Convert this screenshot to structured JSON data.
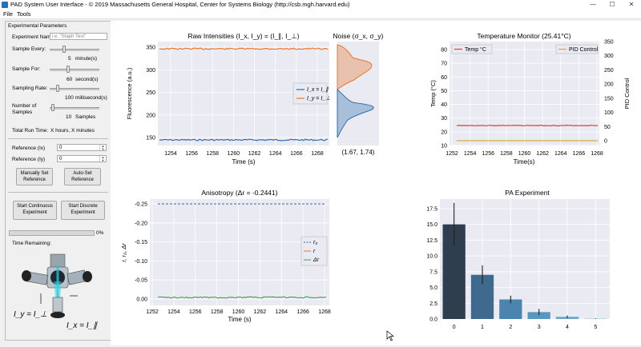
{
  "window": {
    "title": "PAD System User Interface - © 2019 Massachusetts General Hospital, Center for Systems Biology (http://csb.mgh.harvard.edu)",
    "minimize": "—",
    "maximize": "☐",
    "close": "✕"
  },
  "menu": [
    "File",
    "Tools"
  ],
  "params": {
    "heading": "Experimental Parameters",
    "experiment_name_label": "Experiment Name:",
    "experiment_name_placeholder": "i.e. \"Staph Test\"",
    "sample_every_label": "Sample Every:",
    "sample_every_value": "5",
    "sample_every_unit": "minute(s)",
    "sample_for_label": "Sample For:",
    "sample_for_value": "60",
    "sample_for_unit": "second(s)",
    "sampling_rate_label": "Sampling Rate:",
    "sampling_rate_value": "100",
    "sampling_rate_unit": "millisecond(s)",
    "num_samples_label1": "Number of",
    "num_samples_label2": "Samples",
    "num_samples_value": "10",
    "num_samples_unit": "Samples",
    "total_run_label": "Total Run Time:",
    "total_run_value": "X hours, X minutes",
    "ref_ix_label": "Reference (Ix)",
    "ref_ix_value": "0",
    "ref_iy_label": "Reference (Iy)",
    "ref_iy_value": "0",
    "manual_ref_button": [
      "Manually Set",
      "Reference"
    ],
    "auto_ref_button": [
      "Auto-Set",
      "Reference"
    ],
    "start_continuous_button": [
      "Start Continuous",
      "Experiment"
    ],
    "start_discrete_button": [
      "Start Discrete",
      "Experiment"
    ],
    "progress_percent": "0%",
    "progress_value": 0,
    "time_remaining_label": "Time Remaining:",
    "diagram_iy": "I_y = I_⊥",
    "diagram_ix": "I_x = I_∥"
  },
  "charts": {
    "raw": {
      "title": "Raw Intensities (I_x, I_y) = (I_∥, I_⊥)",
      "xlabel": "Time (s)",
      "ylabel": "Fluorescence (a.u.)",
      "yticks": [
        "150",
        "200",
        "250",
        "300",
        "350"
      ],
      "xticks": [
        "1254",
        "1256",
        "1258",
        "1260",
        "1262",
        "1264",
        "1266",
        "1268"
      ],
      "legend": [
        "I_x = I_∥",
        "I_y = I_⊥"
      ],
      "colors": [
        "#2f6fae",
        "#e8782d"
      ]
    },
    "noise": {
      "title": "Noise (σ_x, σ_y)",
      "readout": "(1.67, 1.74)"
    },
    "temp": {
      "title": "Temperature Monitor (25.41°C)",
      "xlabel": "Time(s)",
      "ylabel": "Temp (°C)",
      "ylabel_right": "PID Control",
      "yticks": [
        "10",
        "20",
        "30",
        "40",
        "50",
        "60",
        "70",
        "80"
      ],
      "yticks_right": [
        "0",
        "50",
        "100",
        "150",
        "200",
        "250",
        "300",
        "350"
      ],
      "xticks": [
        "1252",
        "1254",
        "1256",
        "1258",
        "1260",
        "1262",
        "1264",
        "1266",
        "1268"
      ],
      "legend_left": "Temp °C",
      "legend_right": "PID Control",
      "colors": [
        "#d9423b",
        "#d4b03a"
      ]
    },
    "aniso": {
      "title": "Anisotropy (Δr = -0.2441)",
      "xlabel": "Time (s)",
      "ylabel": "r, r₀, Δr",
      "yticks": [
        "0.00",
        "-0.05",
        "-0.10",
        "-0.15",
        "-0.20",
        "-0.25"
      ],
      "xticks": [
        "1252",
        "1254",
        "1256",
        "1258",
        "1260",
        "1262",
        "1264",
        "1266",
        "1268"
      ],
      "legend": [
        "r₀",
        "r",
        "Δr"
      ],
      "colors": [
        "#3b62a6",
        "#e8782d",
        "#3e9e50"
      ]
    }
  },
  "chart_data": {
    "type": "bar",
    "title": "PA Experiment",
    "categories": [
      "0",
      "1",
      "2",
      "3",
      "4",
      "5"
    ],
    "values": [
      15.0,
      7.0,
      3.1,
      1.1,
      0.35,
      0.05
    ],
    "errors": [
      3.4,
      1.5,
      0.6,
      0.5,
      0.2,
      0.05
    ],
    "ylim": [
      0,
      19
    ],
    "yticks": [
      "0.0",
      "2.5",
      "5.0",
      "7.5",
      "10.0",
      "12.5",
      "15.0",
      "17.5"
    ],
    "colors": [
      "#2e3e4e",
      "#3f6a8d",
      "#4d84ad",
      "#5a97c0",
      "#6aa7cf",
      "#7bb6db"
    ]
  }
}
